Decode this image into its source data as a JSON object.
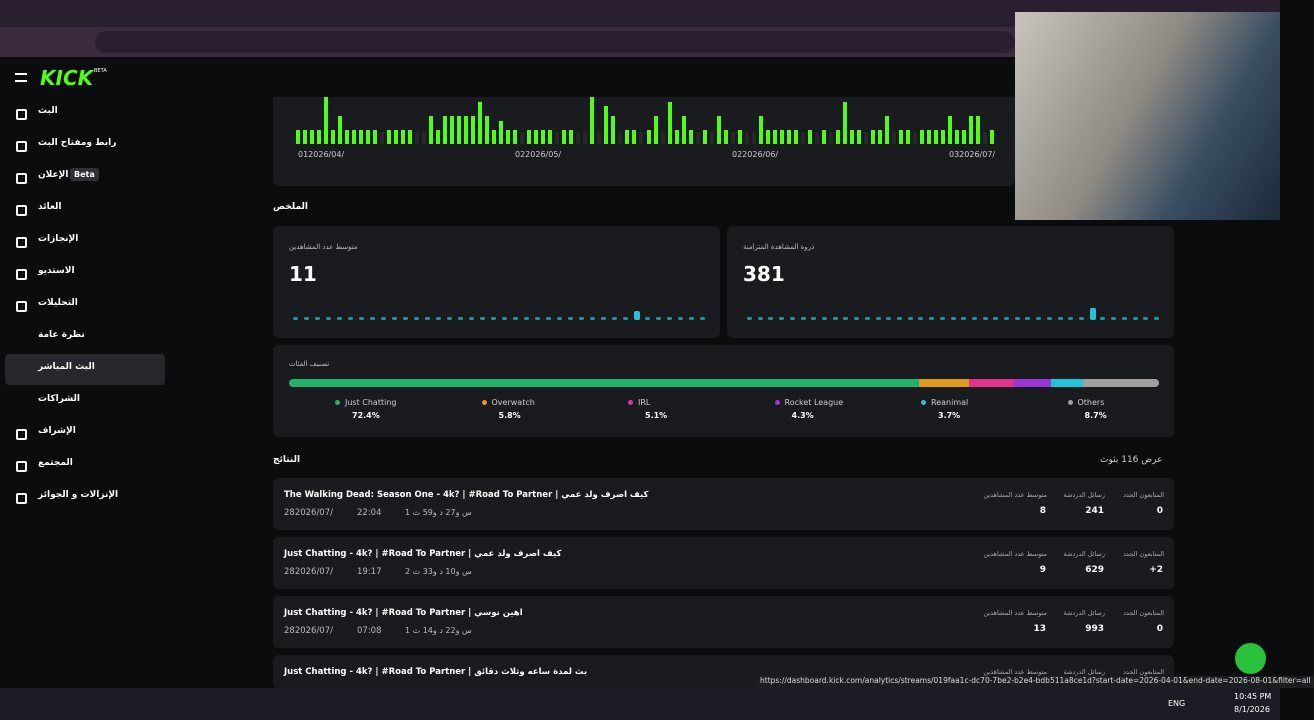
{
  "sidebar": {
    "logo": "KICK",
    "logo_badge": "BETA",
    "items": [
      {
        "label": "البث"
      },
      {
        "label": "رابط ومفتاح البث"
      },
      {
        "label": "الإعلان",
        "badge": "Beta"
      },
      {
        "label": "العائد"
      },
      {
        "label": "الإنجازات"
      },
      {
        "label": "الاستديو"
      },
      {
        "label": "التحليلات"
      },
      {
        "label": "نظرة عامة"
      },
      {
        "label": "البث المباشر"
      },
      {
        "label": "الشراكات"
      },
      {
        "label": "الإشراف"
      },
      {
        "label": "المجتمع"
      },
      {
        "label": "الإنزالات و الجوائز"
      }
    ]
  },
  "activity_chart": {
    "dates": [
      "012026/04/",
      "022026/05/",
      "022026/06/",
      "032026/07/"
    ],
    "values": [
      3,
      3,
      3,
      3,
      10,
      3,
      6,
      3,
      3,
      3,
      3,
      3,
      0,
      3,
      3,
      3,
      3,
      0,
      0,
      6,
      3,
      6,
      6,
      6,
      6,
      6,
      9,
      6,
      3,
      5,
      3,
      3,
      0,
      3,
      3,
      3,
      3,
      0,
      3,
      3,
      0,
      0,
      10,
      0,
      8,
      6,
      0,
      3,
      3,
      0,
      3,
      6,
      0,
      9,
      3,
      6,
      3,
      0,
      3,
      0,
      6,
      3,
      0,
      3,
      0,
      0,
      6,
      3,
      3,
      3,
      3,
      3,
      0,
      3,
      0,
      3,
      0,
      3,
      9,
      3,
      3,
      0,
      3,
      3,
      6,
      0,
      3,
      3,
      0,
      3,
      3,
      3,
      3,
      6,
      3,
      3,
      6,
      6,
      0,
      3
    ]
  },
  "summary": {
    "title": "الملخص",
    "cards": [
      {
        "label": "متوسط عدد المشاهدين",
        "value": "11",
        "spark": [
          1,
          1,
          1,
          1,
          1,
          1,
          1,
          1,
          1,
          1,
          1,
          1,
          1,
          1,
          1,
          1,
          1,
          1,
          1,
          1,
          1,
          1,
          1,
          1,
          1,
          1,
          1,
          1,
          1,
          1,
          1,
          3,
          1,
          1,
          1,
          1,
          1,
          1
        ]
      },
      {
        "label": "ذروة المشاهدة المتزامنة",
        "value": "381",
        "spark": [
          1,
          1,
          1,
          1,
          1,
          1,
          1,
          1,
          1,
          1,
          1,
          1,
          1,
          1,
          1,
          1,
          1,
          1,
          1,
          1,
          1,
          1,
          1,
          1,
          1,
          1,
          1,
          1,
          1,
          1,
          1,
          1,
          4,
          1,
          1,
          1,
          1,
          1,
          1
        ]
      }
    ]
  },
  "categories": {
    "title": "تصنيف الفئات",
    "items": [
      {
        "name": "Just Chatting",
        "color": "#21b36b",
        "share": {
          "value": 72.4,
          "label": "72.4%"
        }
      },
      {
        "name": "Overwatch",
        "color": "#e09a1c",
        "share": {
          "value": 5.8,
          "label": "5.8%"
        }
      },
      {
        "name": "IRL",
        "color": "#e0358f",
        "share": {
          "value": 5.1,
          "label": "5.1%"
        }
      },
      {
        "name": "Rocket League",
        "color": "#9b35d6",
        "share": {
          "value": 4.3,
          "label": "4.3%"
        }
      },
      {
        "name": "Reanimal",
        "color": "#22c3d8",
        "share": {
          "value": 3.7,
          "label": "3.7%"
        }
      },
      {
        "name": "Others",
        "color": "#a0a0a0",
        "share": {
          "value": 8.7,
          "label": "8.7%"
        }
      }
    ]
  },
  "results": {
    "title": "النتائج",
    "count": "عرض 116 بثوث",
    "columns": [
      "متوسط عدد المشاهدين",
      "رسائل الدردشة",
      "المتابعون الجدد"
    ],
    "rows": [
      {
        "title": "The Walking Dead: Season One - 4k? | #Road To Partner | كيف اصرف ولد عمي",
        "date": "282026/07/",
        "time": "22:04",
        "duration": "س و27 د و59 ث 1",
        "stats": [
          "8",
          "241",
          "0"
        ]
      },
      {
        "title": "Just Chatting - 4k? | #Road To Partner | كيف اصرف ولد عمي",
        "date": "282026/07/",
        "time": "19:17",
        "duration": "س و10 د و33 ث 2",
        "stats": [
          "9",
          "629",
          "+2"
        ]
      },
      {
        "title": "Just Chatting - 4k? | #Road To Partner | اهين نوسي",
        "date": "282026/07/",
        "time": "07:08",
        "duration": "س و22 د و14 ث 1",
        "stats": [
          "13",
          "993",
          "0"
        ]
      },
      {
        "title": "Just Chatting - 4k? | #Road To Partner | بث لمدة ساعه وثلاث دقائق",
        "date": "",
        "time": "",
        "duration": "",
        "stats": [
          "",
          "",
          ""
        ]
      }
    ]
  },
  "status_url": "https://dashboard.kick.com/analytics/streams/019faa1c-dc70-7be2-b2e4-bdb511a8ce1d?start-date=2026-04-01&end-date=2026-08-01&filter=all",
  "taskbar": {
    "lang": "ENG",
    "time": "10:45 PM",
    "date": "8/1/2026"
  }
}
